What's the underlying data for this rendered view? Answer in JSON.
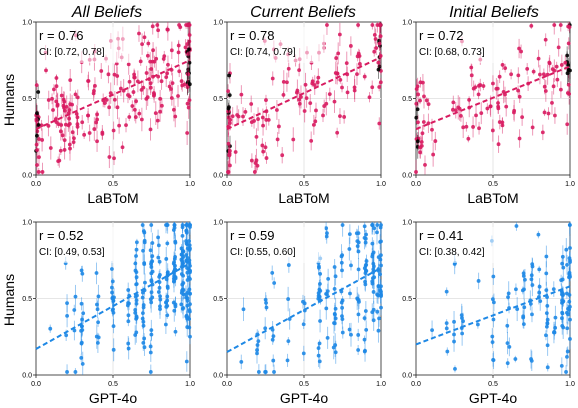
{
  "figure": {
    "column_titles": [
      "All Beliefs",
      "Current Beliefs",
      "Initial Beliefs"
    ],
    "row_ylabel": "Humans",
    "colors": {
      "labtom": "#d81b60",
      "gpt4o": "#1e88e5",
      "outlier": "#000000",
      "grid": "#e6e6e6",
      "axis": "#222222"
    }
  },
  "chart_data": [
    {
      "type": "scatter",
      "panel": "LaBToM / All Beliefs",
      "title": "All Beliefs",
      "xlabel": "LaBToM",
      "ylabel": "Humans",
      "xlim": [
        0,
        1
      ],
      "ylim": [
        0,
        1
      ],
      "xticks": [
        "0.0",
        "0.5",
        "1.0"
      ],
      "yticks": [
        "0.0",
        "0.5",
        "1.0"
      ],
      "grid": true,
      "model": "labtom",
      "annotation_r": "r = 0.76",
      "annotation_ci": "CI: [0.72, 0.78]",
      "r": 0.76,
      "ci": [
        0.72,
        0.78
      ],
      "trend": {
        "x": [
          0,
          1
        ],
        "y": [
          0.3,
          0.75
        ]
      },
      "point_count": 230
    },
    {
      "type": "scatter",
      "panel": "LaBToM / Current Beliefs",
      "title": "Current Beliefs",
      "xlabel": "LaBToM",
      "ylabel": "",
      "xlim": [
        0,
        1
      ],
      "ylim": [
        0,
        1
      ],
      "xticks": [
        "0.0",
        "0.5",
        "1.0"
      ],
      "yticks": [
        "0.0",
        "0.5",
        "1.0"
      ],
      "grid": true,
      "model": "labtom",
      "annotation_r": "r = 0.78",
      "annotation_ci": "CI: [0.74, 0.79]",
      "r": 0.78,
      "ci": [
        0.74,
        0.79
      ],
      "trend": {
        "x": [
          0,
          1
        ],
        "y": [
          0.3,
          0.77
        ]
      },
      "point_count": 150
    },
    {
      "type": "scatter",
      "panel": "LaBToM / Initial Beliefs",
      "title": "Initial Beliefs",
      "xlabel": "LaBToM",
      "ylabel": "",
      "xlim": [
        0,
        1
      ],
      "ylim": [
        0,
        1
      ],
      "xticks": [
        "0.0",
        "0.5",
        "1.0"
      ],
      "yticks": [
        "0.0",
        "0.5",
        "1.0"
      ],
      "grid": true,
      "model": "labtom",
      "annotation_r": "r = 0.72",
      "annotation_ci": "CI: [0.68, 0.73]",
      "r": 0.72,
      "ci": [
        0.68,
        0.73
      ],
      "trend": {
        "x": [
          0,
          1
        ],
        "y": [
          0.3,
          0.71
        ]
      },
      "point_count": 130
    },
    {
      "type": "scatter",
      "panel": "GPT-4o / All Beliefs",
      "title": "",
      "xlabel": "GPT-4o",
      "ylabel": "Humans",
      "xlim": [
        0,
        1
      ],
      "ylim": [
        0,
        1
      ],
      "xticks": [
        "0.0",
        "0.5",
        "1.0"
      ],
      "yticks": [
        "0.0",
        "0.5",
        "1.0"
      ],
      "grid": true,
      "model": "gpt4o",
      "annotation_r": "r = 0.52",
      "annotation_ci": "CI: [0.49, 0.53]",
      "r": 0.52,
      "ci": [
        0.49,
        0.53
      ],
      "trend": {
        "x": [
          0,
          1
        ],
        "y": [
          0.17,
          0.73
        ]
      },
      "point_count": 260
    },
    {
      "type": "scatter",
      "panel": "GPT-4o / Current Beliefs",
      "title": "",
      "xlabel": "GPT-4o",
      "ylabel": "",
      "xlim": [
        0,
        1
      ],
      "ylim": [
        0,
        1
      ],
      "xticks": [
        "0.0",
        "0.5",
        "1.0"
      ],
      "yticks": [
        "0.0",
        "0.5",
        "1.0"
      ],
      "grid": true,
      "model": "gpt4o",
      "annotation_r": "r = 0.59",
      "annotation_ci": "CI: [0.55, 0.60]",
      "r": 0.59,
      "ci": [
        0.55,
        0.6
      ],
      "trend": {
        "x": [
          0,
          1
        ],
        "y": [
          0.15,
          0.7
        ]
      },
      "point_count": 170
    },
    {
      "type": "scatter",
      "panel": "GPT-4o / Initial Beliefs",
      "title": "",
      "xlabel": "GPT-4o",
      "ylabel": "",
      "xlim": [
        0,
        1
      ],
      "ylim": [
        0,
        1
      ],
      "xticks": [
        "0.0",
        "0.5",
        "1.0"
      ],
      "yticks": [
        "0.0",
        "0.5",
        "1.0"
      ],
      "grid": true,
      "model": "gpt4o",
      "annotation_r": "r = 0.41",
      "annotation_ci": "CI: [0.38, 0.42]",
      "r": 0.41,
      "ci": [
        0.38,
        0.42
      ],
      "trend": {
        "x": [
          0,
          1
        ],
        "y": [
          0.2,
          0.58
        ]
      },
      "point_count": 130
    }
  ]
}
